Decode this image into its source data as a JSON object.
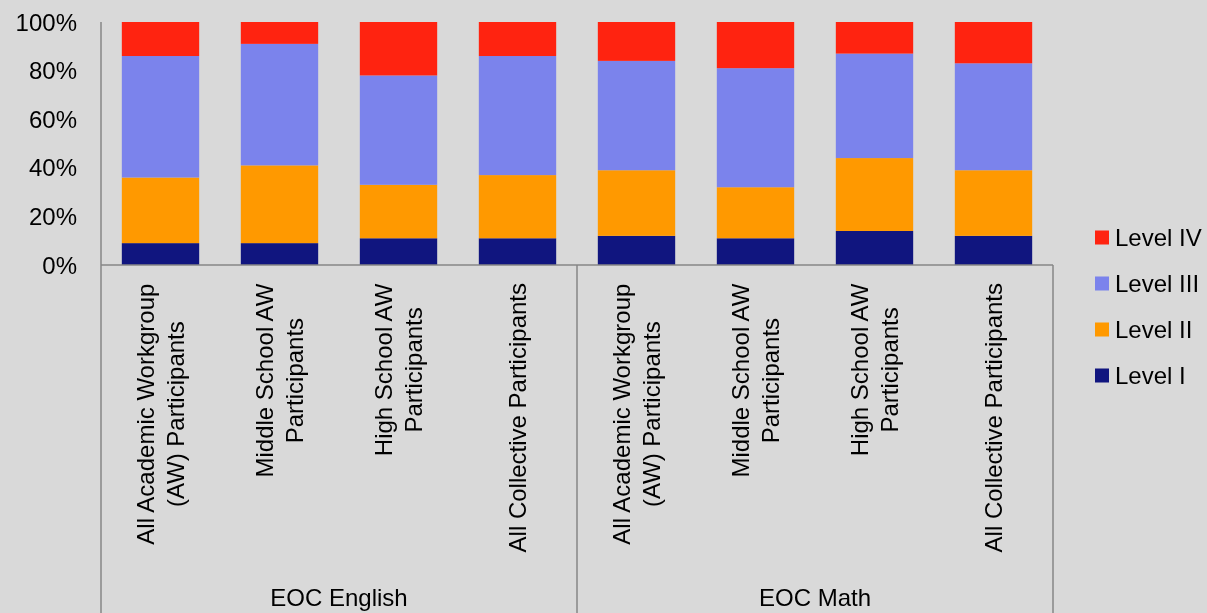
{
  "chart_data": {
    "type": "bar",
    "stacked": true,
    "categories": [
      "All Academic Workgroup (AW) Participants",
      "Middle School AW Participants",
      "High School AW Participants",
      "All Collective Participants",
      "All Academic Workgroup (AW) Participants",
      "Middle School AW Participants",
      "High School AW Participants",
      "All Collective Participants"
    ],
    "series": [
      {
        "name": "Level I",
        "color": "#10157f",
        "values": [
          9,
          9,
          11,
          11,
          12,
          11,
          14,
          12
        ]
      },
      {
        "name": "Level II",
        "color": "#ff9900",
        "values": [
          27,
          32,
          22,
          26,
          27,
          21,
          30,
          27
        ]
      },
      {
        "name": "Level III",
        "color": "#7b83ec",
        "values": [
          50,
          50,
          45,
          49,
          45,
          49,
          43,
          44
        ]
      },
      {
        "name": "Level IV",
        "color": "#ff2310",
        "values": [
          14,
          9,
          22,
          14,
          16,
          19,
          13,
          17
        ]
      }
    ],
    "ylim": [
      0,
      100
    ],
    "yticks": [
      {
        "value": 0,
        "label": "0%"
      },
      {
        "value": 20,
        "label": "20%"
      },
      {
        "value": 40,
        "label": "40%"
      },
      {
        "value": 60,
        "label": "60%"
      },
      {
        "value": 80,
        "label": "80%"
      },
      {
        "value": 100,
        "label": "100%"
      }
    ],
    "legend": "right",
    "annotations": [
      "EOC English",
      "EOC Math"
    ]
  }
}
